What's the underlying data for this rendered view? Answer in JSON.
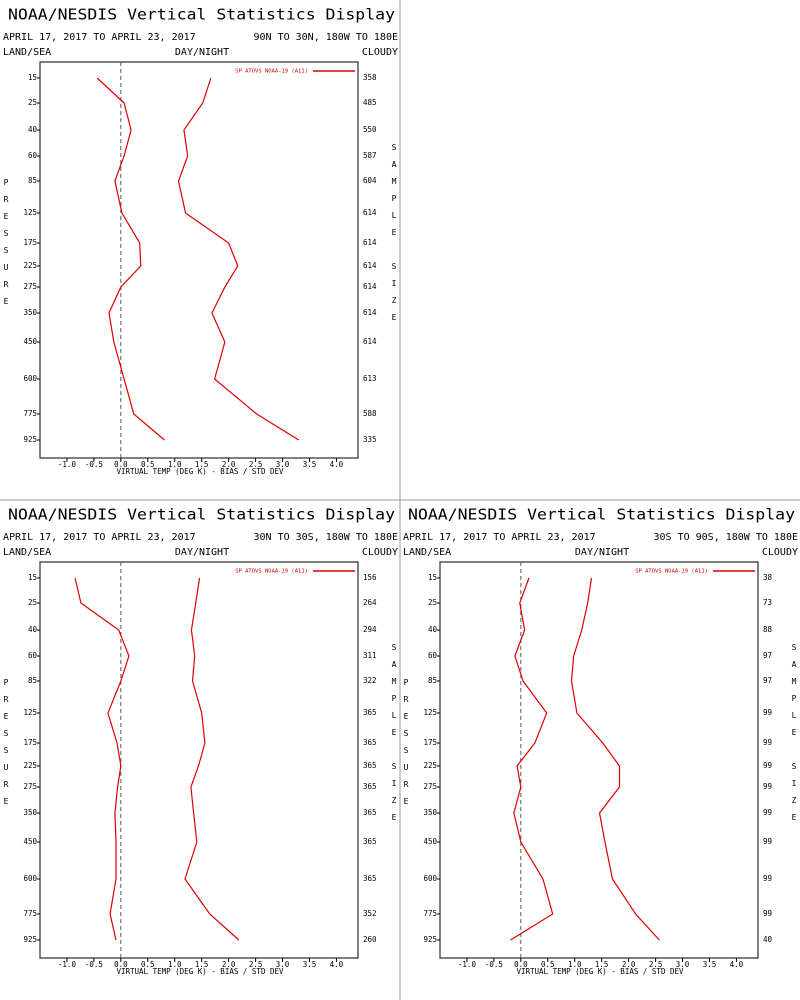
{
  "chart_data": [
    {
      "type": "line",
      "title": "NOAA/NESDIS Vertical Statistics Display",
      "date_range": "APRIL 17, 2017 TO APRIL 23, 2017",
      "region": "90N TO 30N, 180W TO 180E",
      "left_label": "LAND/SEA",
      "center_label": "DAY/NIGHT",
      "right_label": "CLOUDY",
      "y_label": "PRESSURE",
      "y2_label": "SAMPLE SIZE",
      "x_label": "VIRTUAL TEMP (DEG K) - BIAS / STD DEV",
      "categories": [
        15,
        25,
        40,
        60,
        85,
        125,
        175,
        225,
        275,
        350,
        450,
        600,
        775,
        925
      ],
      "series": [
        {
          "name": "SP ATOVS NOAA-19 (A11)",
          "color": "#dd0000",
          "bias": [
            -0.44,
            0.06,
            0.19,
            0.06,
            -0.11,
            0.02,
            0.35,
            0.37,
            0.0,
            -0.22,
            -0.13,
            0.06,
            0.24,
            0.81
          ],
          "std_dev": [
            1.67,
            1.52,
            1.17,
            1.24,
            1.07,
            1.2,
            2.0,
            2.17,
            1.93,
            1.69,
            1.93,
            1.74,
            2.52,
            3.3
          ]
        }
      ],
      "sample_size": [
        358,
        485,
        550,
        587,
        604,
        614,
        614,
        614,
        614,
        614,
        614,
        613,
        588,
        335
      ],
      "xlim": [
        -1.5,
        4.4
      ],
      "xticks": [
        {
          "value": -1,
          "label": "-1.0"
        },
        -0.5,
        {
          "value": 0,
          "label": "0.0"
        },
        0.5,
        {
          "value": 1,
          "label": "1.0"
        },
        1.5,
        {
          "value": 2,
          "label": "2.0"
        },
        2.5,
        {
          "value": 3,
          "label": "3.0"
        },
        3.5,
        {
          "value": 4,
          "label": "4.0"
        }
      ]
    },
    {
      "type": "line",
      "title": "NOAA/NESDIS Vertical Statistics Display",
      "date_range": "APRIL 17, 2017 TO APRIL 23, 2017",
      "region": "30N TO 30S, 180W TO 180E",
      "left_label": "LAND/SEA",
      "center_label": "DAY/NIGHT",
      "right_label": "CLOUDY",
      "y_label": "PRESSURE",
      "y2_label": "SAMPLE SIZE",
      "x_label": "VIRTUAL TEMP (DEG K) - BIAS / STD DEV",
      "categories": [
        15,
        25,
        40,
        60,
        85,
        125,
        175,
        225,
        275,
        350,
        450,
        600,
        775,
        925
      ],
      "series": [
        {
          "name": "SP ATOVS NOAA-19 (A11)",
          "color": "#dd0000",
          "bias": [
            -0.85,
            -0.74,
            -0.04,
            0.15,
            0.0,
            -0.24,
            -0.07,
            0.0,
            -0.06,
            -0.11,
            -0.09,
            -0.09,
            -0.2,
            -0.09
          ],
          "std_dev": [
            1.46,
            1.39,
            1.31,
            1.37,
            1.33,
            1.5,
            1.56,
            1.44,
            1.3,
            1.35,
            1.41,
            1.19,
            1.65,
            2.19
          ]
        }
      ],
      "sample_size": [
        156,
        264,
        294,
        311,
        322,
        365,
        365,
        365,
        365,
        365,
        365,
        365,
        352,
        260
      ],
      "xlim": [
        -1.5,
        4.4
      ],
      "xticks": [
        {
          "value": -1,
          "label": "-1.0"
        },
        -0.5,
        {
          "value": 0,
          "label": "0.0"
        },
        0.5,
        {
          "value": 1,
          "label": "1.0"
        },
        1.5,
        {
          "value": 2,
          "label": "2.0"
        },
        2.5,
        {
          "value": 3,
          "label": "3.0"
        },
        3.5,
        {
          "value": 4,
          "label": "4.0"
        }
      ]
    },
    {
      "type": "line",
      "title": "NOAA/NESDIS Vertical Statistics Display",
      "date_range": "APRIL 17, 2017 TO APRIL 23, 2017",
      "region": "30S TO 90S, 180W TO 180E",
      "left_label": "LAND/SEA",
      "center_label": "DAY/NIGHT",
      "right_label": "CLOUDY",
      "y_label": "PRESSURE",
      "y2_label": "SAMPLE SIZE",
      "x_label": "VIRTUAL TEMP (DEG K) - BIAS / STD DEV",
      "categories": [
        15,
        25,
        40,
        60,
        85,
        125,
        175,
        225,
        275,
        350,
        450,
        600,
        775,
        925
      ],
      "series": [
        {
          "name": "SP ATOVS NOAA-19 (A11)",
          "color": "#dd0000",
          "bias": [
            0.15,
            -0.02,
            0.07,
            -0.11,
            0.04,
            0.48,
            0.26,
            -0.07,
            0.0,
            -0.13,
            0.0,
            0.41,
            0.59,
            -0.19
          ],
          "std_dev": [
            1.31,
            1.24,
            1.13,
            0.98,
            0.94,
            1.04,
            1.52,
            1.83,
            1.83,
            1.46,
            1.56,
            1.7,
            2.13,
            2.57
          ]
        }
      ],
      "sample_size": [
        38,
        73,
        88,
        97,
        97,
        99,
        99,
        99,
        99,
        99,
        99,
        99,
        99,
        40
      ],
      "xlim": [
        -1.5,
        4.4
      ],
      "xticks": [
        {
          "value": -1,
          "label": "-1.0"
        },
        -0.5,
        {
          "value": 0,
          "label": "0.0"
        },
        0.5,
        {
          "value": 1,
          "label": "1.0"
        },
        1.5,
        {
          "value": 2,
          "label": "2.0"
        },
        2.5,
        {
          "value": 3,
          "label": "3.0"
        },
        3.5,
        {
          "value": 4,
          "label": "4.0"
        }
      ]
    }
  ]
}
